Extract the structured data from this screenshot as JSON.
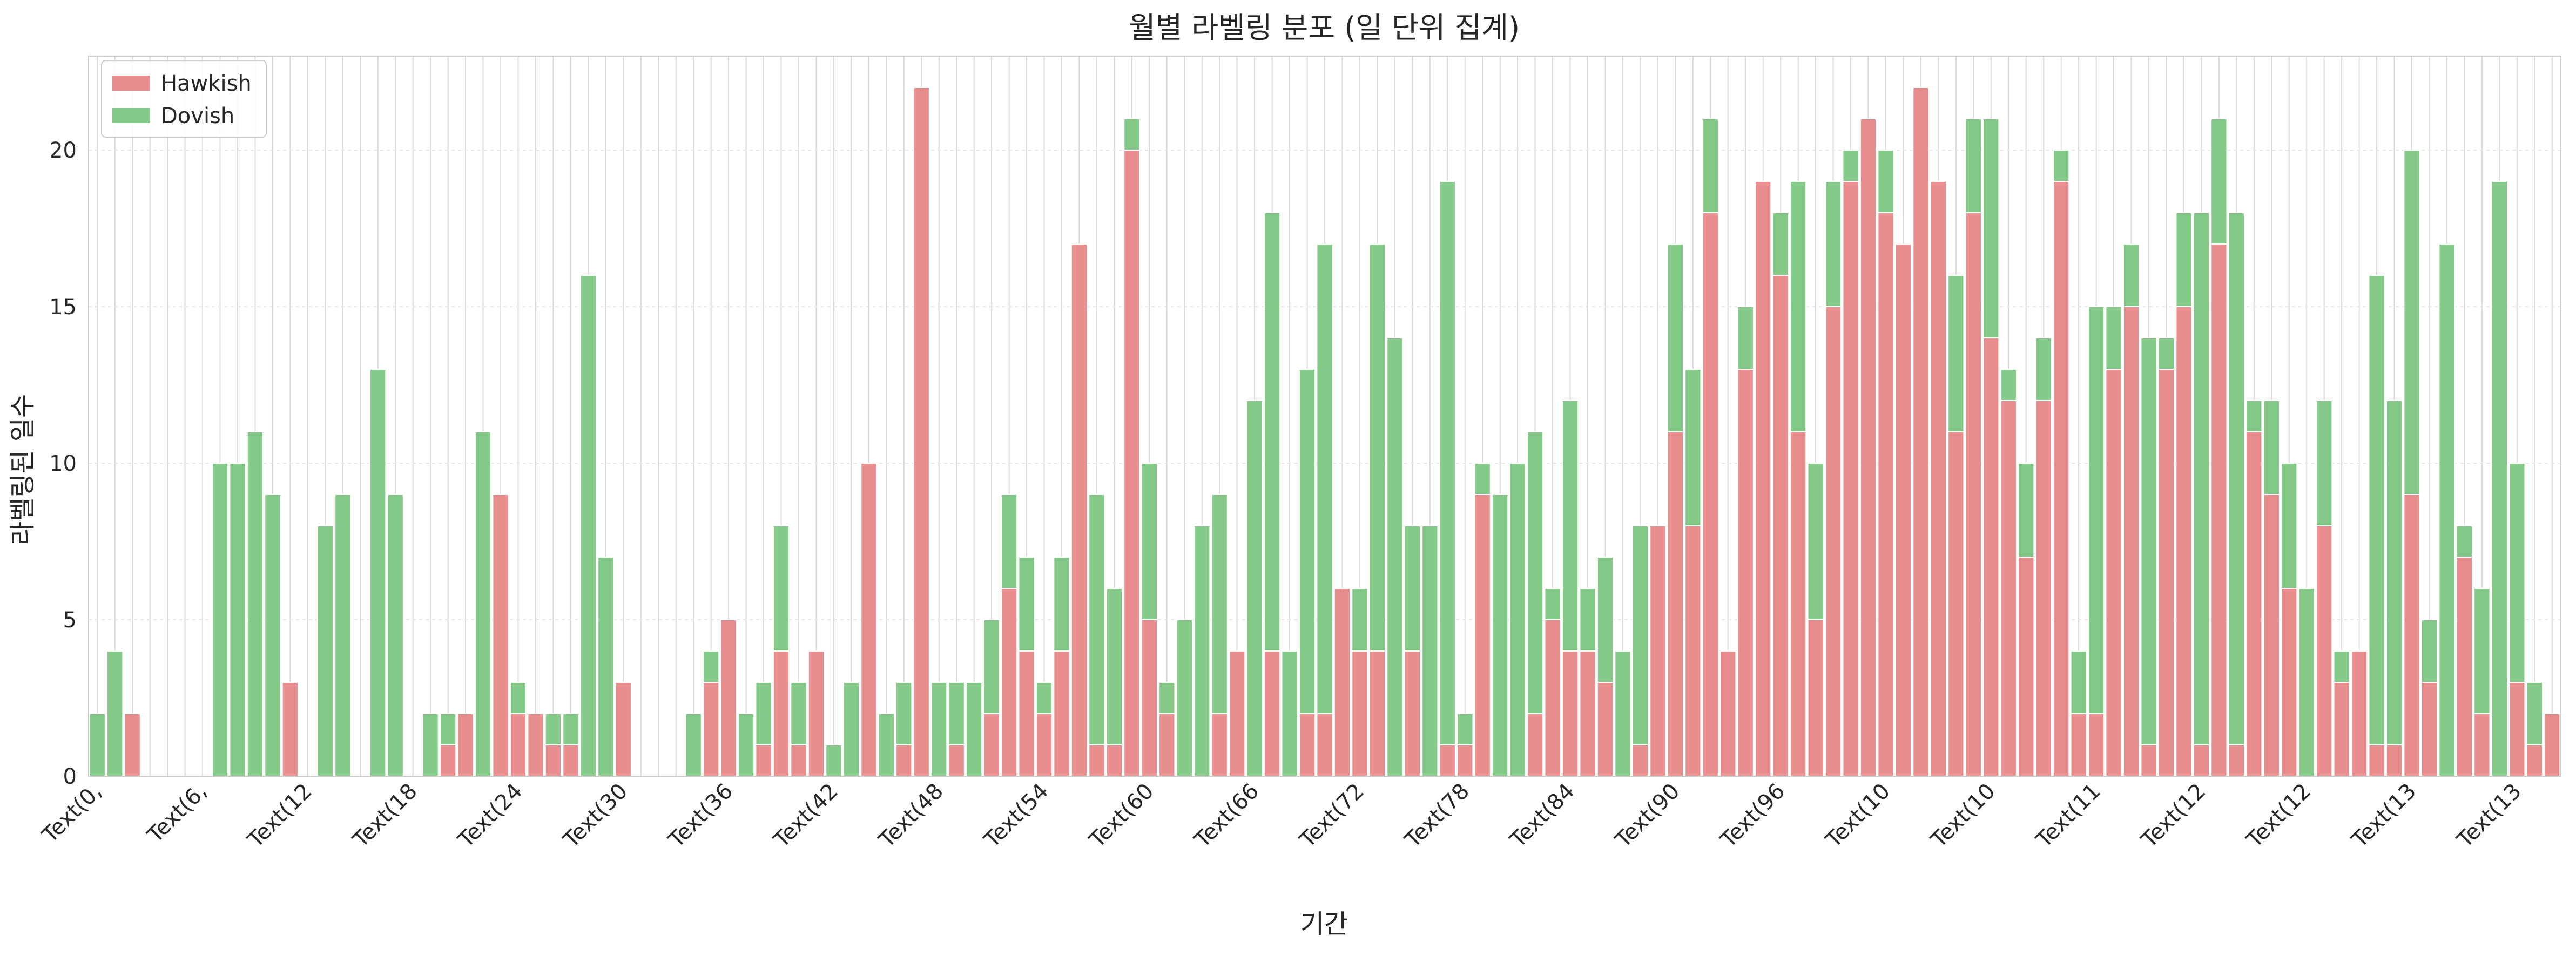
{
  "colors": {
    "hawkish": "#e88e8e",
    "dovish": "#84c987",
    "grid": "#d9d9d9",
    "frame": "#cccccc"
  },
  "chart_data": {
    "type": "bar",
    "stacked": true,
    "title": "월별 라벨링 분포 (일 단위 집계)",
    "xlabel": "기간",
    "ylabel": "라벨링된 일수",
    "ylim": [
      0,
      23
    ],
    "yticks": [
      0,
      5,
      10,
      15,
      20
    ],
    "grid": true,
    "legend": "top-left",
    "xtick_labels": [
      "Text(0,",
      "Text(6,",
      "Text(12",
      "Text(18",
      "Text(24",
      "Text(30",
      "Text(36",
      "Text(42",
      "Text(48",
      "Text(54",
      "Text(60",
      "Text(66",
      "Text(72",
      "Text(78",
      "Text(84",
      "Text(90",
      "Text(96",
      "Text(10",
      "Text(10",
      "Text(11",
      "Text(12",
      "Text(12",
      "Text(13",
      "Text(13"
    ],
    "xtick_every": 6,
    "series": [
      {
        "name": "Hawkish",
        "values": [
          0,
          0,
          2,
          0,
          0,
          0,
          0,
          0,
          0,
          0,
          0,
          3,
          0,
          0,
          0,
          0,
          0,
          0,
          0,
          0,
          1,
          2,
          0,
          9,
          2,
          2,
          1,
          1,
          0,
          0,
          3,
          0,
          0,
          0,
          0,
          3,
          5,
          0,
          1,
          4,
          1,
          4,
          0,
          0,
          10,
          0,
          1,
          22,
          0,
          1,
          0,
          2,
          6,
          4,
          2,
          4,
          17,
          1,
          1,
          20,
          5,
          2,
          0,
          0,
          2,
          4,
          0,
          4,
          0,
          2,
          2,
          6,
          4,
          4,
          0,
          4,
          0,
          1,
          1,
          9,
          0,
          0,
          2,
          5,
          4,
          4,
          3,
          0,
          1,
          8,
          11,
          8,
          18,
          4,
          13,
          19,
          16,
          11,
          5,
          15,
          19,
          21,
          18,
          17,
          22,
          19,
          11,
          18,
          14,
          12,
          7,
          12,
          19,
          2,
          2,
          13,
          15,
          1,
          13,
          15,
          1,
          17,
          1,
          11,
          9,
          6,
          0,
          8,
          3,
          4,
          1,
          1,
          9,
          3,
          0,
          7,
          2,
          0,
          3,
          1,
          2
        ]
      },
      {
        "name": "Dovish",
        "values": [
          2,
          4,
          0,
          0,
          0,
          0,
          0,
          10,
          10,
          11,
          9,
          0,
          0,
          8,
          9,
          0,
          13,
          9,
          0,
          2,
          1,
          0,
          11,
          0,
          1,
          0,
          1,
          1,
          16,
          7,
          0,
          0,
          0,
          0,
          2,
          1,
          0,
          2,
          2,
          4,
          2,
          0,
          1,
          3,
          0,
          2,
          2,
          0,
          3,
          2,
          3,
          3,
          3,
          3,
          1,
          3,
          0,
          8,
          5,
          1,
          5,
          1,
          5,
          8,
          7,
          0,
          12,
          14,
          4,
          11,
          15,
          0,
          2,
          13,
          14,
          4,
          8,
          18,
          1,
          1,
          9,
          10,
          9,
          1,
          8,
          2,
          4,
          4,
          7,
          0,
          6,
          5,
          3,
          0,
          2,
          0,
          2,
          8,
          5,
          4,
          1,
          0,
          2,
          0,
          0,
          0,
          5,
          3,
          7,
          1,
          3,
          2,
          1,
          2,
          13,
          2,
          2,
          13,
          1,
          3,
          17,
          4,
          17,
          1,
          3,
          4,
          6,
          4,
          1,
          0,
          15,
          11,
          11,
          2,
          17,
          1,
          4,
          19,
          7,
          2,
          0
        ]
      }
    ]
  }
}
